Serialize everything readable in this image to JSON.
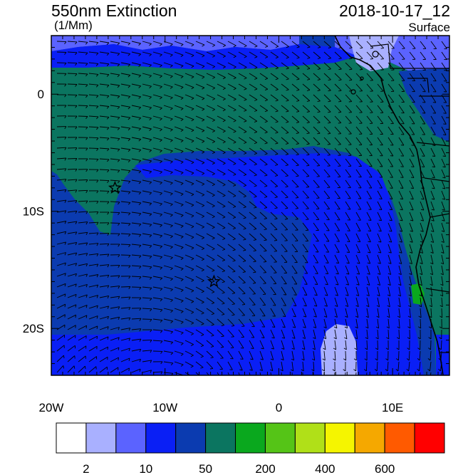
{
  "header": {
    "title": "550nm Extinction",
    "units": "(1/Mm)",
    "valid_time": "2018-10-17_12",
    "level": "Surface"
  },
  "map": {
    "lon_range": [
      -20,
      15
    ],
    "lat_range": [
      -24,
      5
    ],
    "lon_ticks": [
      {
        "value": -20,
        "label": "20W"
      },
      {
        "value": -10,
        "label": "10W"
      },
      {
        "value": 0,
        "label": "0"
      },
      {
        "value": 10,
        "label": "10E"
      }
    ],
    "lat_ticks": [
      {
        "value": 0,
        "label": "0"
      },
      {
        "value": -10,
        "label": "10S"
      },
      {
        "value": -20,
        "label": "20S"
      }
    ],
    "markers": [
      {
        "name": "star-marker-1",
        "lon": -14.4,
        "lat": -8.0
      },
      {
        "name": "star-marker-2",
        "lon": -5.7,
        "lat": -16.0
      }
    ],
    "wind_barbs": "shown"
  },
  "colorbar": {
    "colors": [
      "#ffffff",
      "#a9b0ff",
      "#5b63ff",
      "#0a1ff5",
      "#0b3bb0",
      "#0b7560",
      "#0aa81e",
      "#55c417",
      "#b0e018",
      "#f5f500",
      "#f5a800",
      "#ff5a00",
      "#ff0000"
    ],
    "labels": [
      {
        "after_box": 1,
        "text": "2"
      },
      {
        "after_box": 3,
        "text": "10"
      },
      {
        "after_box": 5,
        "text": "50"
      },
      {
        "after_box": 7,
        "text": "200"
      },
      {
        "after_box": 9,
        "text": "400"
      },
      {
        "after_box": 11,
        "text": "600"
      }
    ]
  }
}
